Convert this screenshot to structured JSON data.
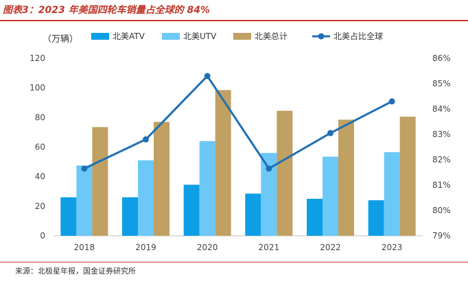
{
  "header": {
    "title": "图表3：2023 年美国四轮车销量占全球的 84%"
  },
  "footer": {
    "source": "来源：北极星年报，国金证券研究所"
  },
  "colors": {
    "atv": "#0d9ee6",
    "utv": "#6cc8f7",
    "total": "#c0a063",
    "share": "#1f6fb5",
    "accent": "#c0392b"
  },
  "chart_data": {
    "type": "bar",
    "unit_label": "（万辆）",
    "categories": [
      "2018",
      "2019",
      "2020",
      "2021",
      "2022",
      "2023"
    ],
    "series": [
      {
        "name": "北美ATV",
        "type": "bar",
        "axis": "left",
        "values": [
          26,
          26,
          34.5,
          28.5,
          25,
          24
        ]
      },
      {
        "name": "北美UTV",
        "type": "bar",
        "axis": "left",
        "values": [
          47.5,
          51,
          64,
          56,
          53.5,
          56.5
        ]
      },
      {
        "name": "北美总计",
        "type": "bar",
        "axis": "left",
        "values": [
          73.5,
          77,
          98.5,
          84.5,
          78.5,
          80.5
        ]
      },
      {
        "name": "北美占比全球",
        "type": "line",
        "axis": "right",
        "values": [
          81.65,
          82.8,
          85.3,
          81.65,
          83.05,
          84.3
        ]
      }
    ],
    "y_left": {
      "min": 0,
      "max": 120,
      "ticks": [
        "0",
        "20",
        "40",
        "60",
        "80",
        "100",
        "120"
      ]
    },
    "y_right": {
      "min": 79,
      "max": 86,
      "ticks": [
        "79%",
        "80%",
        "81%",
        "82%",
        "83%",
        "84%",
        "85%",
        "86%"
      ]
    },
    "grid": false,
    "legend_position": "top"
  }
}
